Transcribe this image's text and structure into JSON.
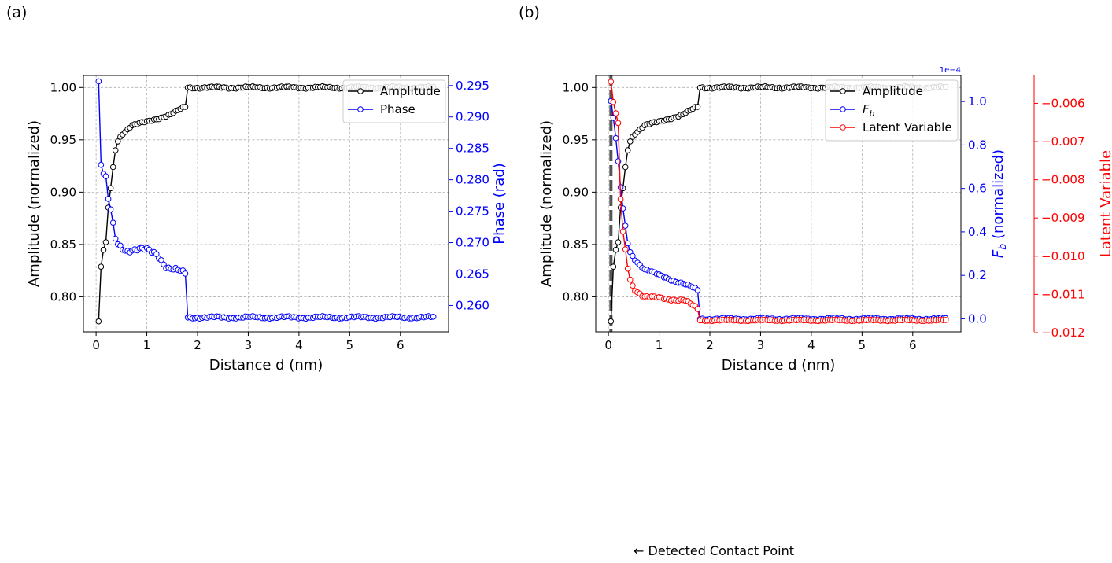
{
  "panel_labels": [
    "(a)",
    "(b)"
  ],
  "annotation": "← Detected Contact Point",
  "colors": {
    "amplitude": "#000000",
    "phase": "#0000ff",
    "fb": "#0000ff",
    "latent": "#ff0000",
    "contact_line": "#555555"
  },
  "chart_data": [
    {
      "type": "line",
      "panel": "(a)",
      "xlabel": "Distance d (nm)",
      "ylabel": "Amplitude (normalized)",
      "y2label": "Phase (rad)",
      "xlim": [
        -0.25,
        6.95
      ],
      "ylim": [
        0.7665,
        1.0115
      ],
      "y2lim": [
        0.2558,
        0.2966
      ],
      "xticks": [
        0,
        1,
        2,
        3,
        4,
        5,
        6
      ],
      "yticks": [
        0.8,
        0.85,
        0.9,
        0.95,
        1.0
      ],
      "ytick_labels": [
        "0.80",
        "0.85",
        "0.90",
        "0.95",
        "1.00"
      ],
      "y2ticks": [
        0.26,
        0.265,
        0.27,
        0.275,
        0.28,
        0.285,
        0.29,
        0.295
      ],
      "y2tick_labels": [
        "0.260",
        "0.265",
        "0.270",
        "0.275",
        "0.280",
        "0.285",
        "0.290",
        "0.295"
      ],
      "grid": true,
      "legend_position": "top-right",
      "series": [
        {
          "name": "Amplitude",
          "axis": "left",
          "color": "#000000",
          "profile": "amplitude"
        },
        {
          "name": "Phase",
          "axis": "right",
          "color": "#0000ff",
          "profile": "phase"
        }
      ]
    },
    {
      "type": "line",
      "panel": "(b)",
      "xlabel": "Distance d (nm)",
      "ylabel": "Amplitude (normalized)",
      "y2label": "F_b (normalized)",
      "y3label": "Latent Variable",
      "y2_offset_text": "1e−4",
      "xlim": [
        -0.25,
        6.95
      ],
      "ylim": [
        0.7665,
        1.0115
      ],
      "y2lim": [
        -0.06,
        1.12
      ],
      "y3lim": [
        -0.01198,
        -0.00527
      ],
      "xticks": [
        0,
        1,
        2,
        3,
        4,
        5,
        6
      ],
      "yticks": [
        0.8,
        0.85,
        0.9,
        0.95,
        1.0
      ],
      "ytick_labels": [
        "0.80",
        "0.85",
        "0.90",
        "0.95",
        "1.00"
      ],
      "y2ticks": [
        0.0,
        0.2,
        0.4,
        0.6,
        0.8,
        1.0
      ],
      "y2tick_labels": [
        "0.0",
        "0.2",
        "0.4",
        "0.6",
        "0.8",
        "1.0"
      ],
      "y3ticks": [
        -0.012,
        -0.011,
        -0.01,
        -0.009,
        -0.008,
        -0.007,
        -0.006
      ],
      "y3tick_labels": [
        "−0.012",
        "−0.011",
        "−0.010",
        "−0.009",
        "−0.008",
        "−0.007",
        "−0.006"
      ],
      "contact_point_x": 0.05,
      "grid": true,
      "legend_position": "top-right",
      "series": [
        {
          "name": "Amplitude",
          "axis": "left",
          "color": "#000000",
          "profile": "amplitude"
        },
        {
          "name": "F_b",
          "axis": "right",
          "color": "#0000ff",
          "profile": "fb"
        },
        {
          "name": "Latent Variable",
          "axis": "third",
          "color": "#ff0000",
          "profile": "latent"
        }
      ]
    }
  ]
}
